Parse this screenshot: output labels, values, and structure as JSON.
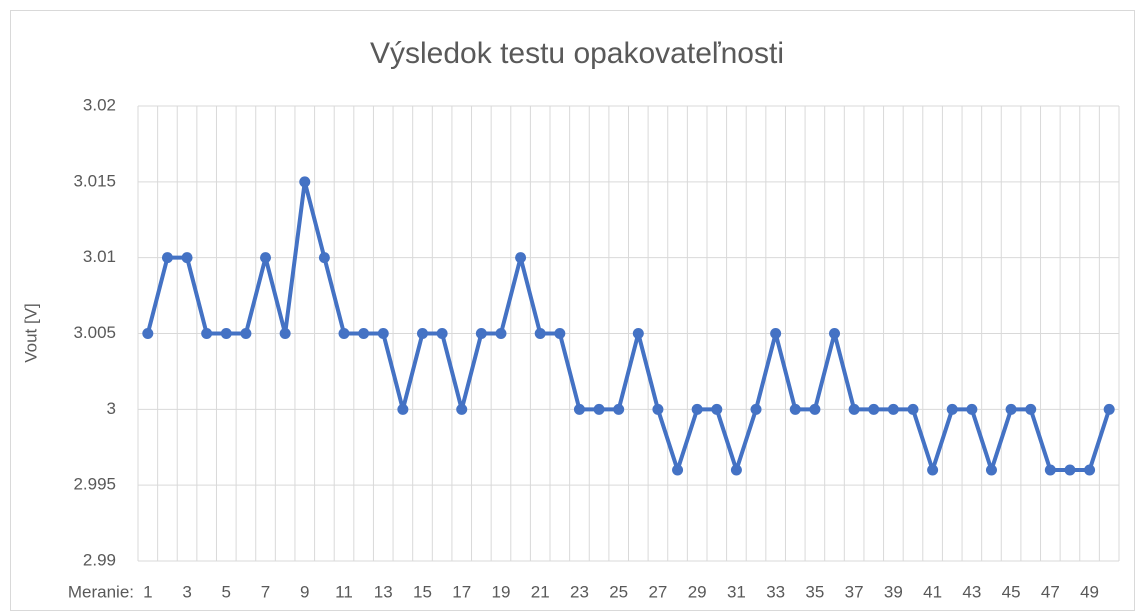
{
  "chart_data": {
    "type": "line",
    "title": "Výsledok testu opakovateľnosti",
    "ylabel": "Vout [V]",
    "xlabel": "Meranie:",
    "categories": [
      1,
      null,
      3,
      null,
      5,
      null,
      7,
      null,
      9,
      null,
      11,
      null,
      13,
      null,
      15,
      null,
      17,
      null,
      19,
      null,
      21,
      null,
      23,
      null,
      25,
      null,
      27,
      null,
      29,
      null,
      31,
      null,
      33,
      null,
      35,
      null,
      37,
      null,
      39,
      null,
      41,
      null,
      43,
      null,
      45,
      null,
      47,
      null,
      49,
      null
    ],
    "series": [
      {
        "name": "Vout",
        "color": "#4472c4",
        "values": [
          3.005,
          3.01,
          3.01,
          3.005,
          3.005,
          3.005,
          3.01,
          3.005,
          3.015,
          3.01,
          3.005,
          3.005,
          3.005,
          3.0,
          3.005,
          3.005,
          3.0,
          3.005,
          3.005,
          3.01,
          3.005,
          3.005,
          3.0,
          3.0,
          3.0,
          3.005,
          3.0,
          2.996,
          3.0,
          3.0,
          2.996,
          3.0,
          3.005,
          3.0,
          3.0,
          3.005,
          3.0,
          3.0,
          3.0,
          3.0,
          2.996,
          3.0,
          3.0,
          2.996,
          3.0,
          3.0,
          2.996,
          2.996,
          2.996,
          3.0
        ]
      }
    ],
    "ylim": [
      2.99,
      3.02
    ],
    "yticks": [
      2.99,
      2.995,
      3,
      3.005,
      3.01,
      3.015,
      3.02
    ],
    "grid": true
  }
}
